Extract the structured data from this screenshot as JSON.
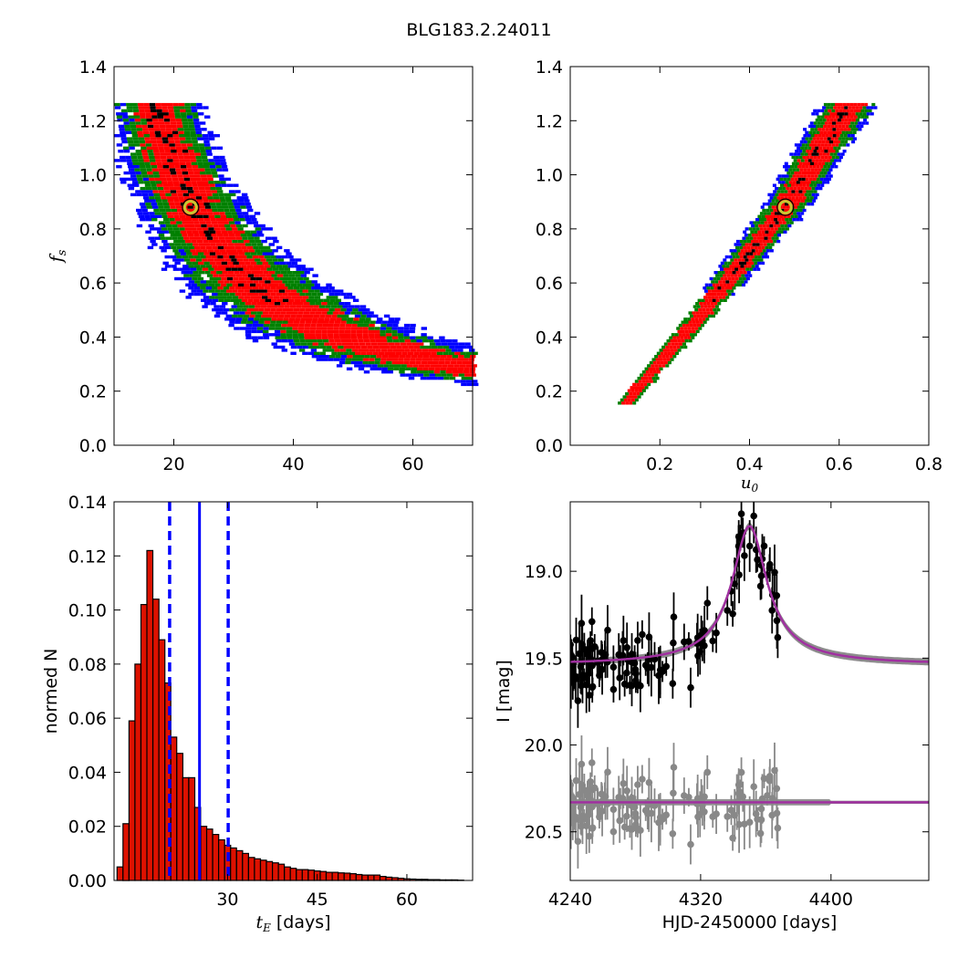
{
  "title": "BLG183.2.24011",
  "colors": {
    "sigma3": "#0000ff",
    "sigma2": "#008000",
    "sigma1": "#ff0000",
    "best": "#000000",
    "marker": "#c8c832",
    "hist": "#dd1100",
    "model": "#a030a0",
    "data": "#000000",
    "resid": "#888888",
    "median": "#0000ff"
  },
  "chart_data": [
    {
      "id": "fs_vs_tE",
      "type": "heatmap",
      "xlabel": "",
      "ylabel": "f_s",
      "xlim": [
        10,
        70
      ],
      "ylim": [
        0.0,
        1.4
      ],
      "xticks": [
        20,
        40,
        60
      ],
      "yticks": [
        "0.0",
        "0.2",
        "0.4",
        "0.6",
        "0.8",
        "1.0",
        "1.2",
        "1.4"
      ],
      "relation": "fs = 18.6 / (tE - 1.6) (approx. degeneracy curve)",
      "band_fs_range": [
        0.15,
        1.26
      ],
      "best_fit": {
        "x": 22.8,
        "y": 0.88
      }
    },
    {
      "id": "fs_vs_u0",
      "type": "heatmap",
      "xlabel": "u_0",
      "ylabel": "",
      "xlim": [
        0.0,
        0.8
      ],
      "ylim": [
        0.0,
        1.4
      ],
      "xticks": [
        "0.2",
        "0.4",
        "0.6",
        "0.8"
      ],
      "yticks": [
        "0.0",
        "0.2",
        "0.4",
        "0.6",
        "0.8",
        "1.0",
        "1.2",
        "1.4"
      ],
      "ridge": [
        [
          0.12,
          0.15
        ],
        [
          0.3,
          0.5
        ],
        [
          0.48,
          0.88
        ],
        [
          0.62,
          1.26
        ]
      ],
      "best_fit": {
        "x": 0.48,
        "y": 0.88
      }
    },
    {
      "id": "tE_hist",
      "type": "bar",
      "xlabel": "t_E  [days]",
      "ylabel": "normed N",
      "xlim": [
        11,
        71
      ],
      "ylim": [
        0.0,
        0.14
      ],
      "xticks": [
        30,
        45,
        60
      ],
      "yticks": [
        "0.00",
        "0.02",
        "0.04",
        "0.06",
        "0.08",
        "0.10",
        "0.12",
        "0.14"
      ],
      "bin_start": 11.5,
      "bin_width": 1,
      "values": [
        0.005,
        0.021,
        0.059,
        0.08,
        0.102,
        0.122,
        0.104,
        0.089,
        0.073,
        0.053,
        0.047,
        0.038,
        0.038,
        0.027,
        0.02,
        0.019,
        0.017,
        0.015,
        0.013,
        0.012,
        0.011,
        0.01,
        0.0085,
        0.008,
        0.0075,
        0.007,
        0.0065,
        0.006,
        0.005,
        0.0045,
        0.004,
        0.004,
        0.0038,
        0.0035,
        0.0033,
        0.003,
        0.003,
        0.0028,
        0.0027,
        0.0025,
        0.0022,
        0.002,
        0.002,
        0.002,
        0.0015,
        0.0012,
        0.001,
        0.0008,
        0.0006,
        0.0005,
        0.0004,
        0.0004,
        0.0003,
        0.0003,
        0.0002,
        0.0002,
        0.0002,
        0.0001
      ],
      "median": 25.3,
      "lower": 20.3,
      "upper": 30.1
    },
    {
      "id": "lightcurve",
      "type": "scatter",
      "xlabel": "HJD-2450000 [days]",
      "ylabel": "I [mag]",
      "xlim": [
        4240,
        4460
      ],
      "ylim": [
        20.78,
        18.6
      ],
      "xticks": [
        "4240",
        "4320",
        "4400"
      ],
      "yticks": [
        "19.0",
        "19.5",
        "20.0",
        "20.5"
      ],
      "model": {
        "t0": 4350,
        "peak_mag": 18.74,
        "baseline": 19.54
      },
      "residual_baseline": 20.33,
      "n_points": 130
    }
  ]
}
